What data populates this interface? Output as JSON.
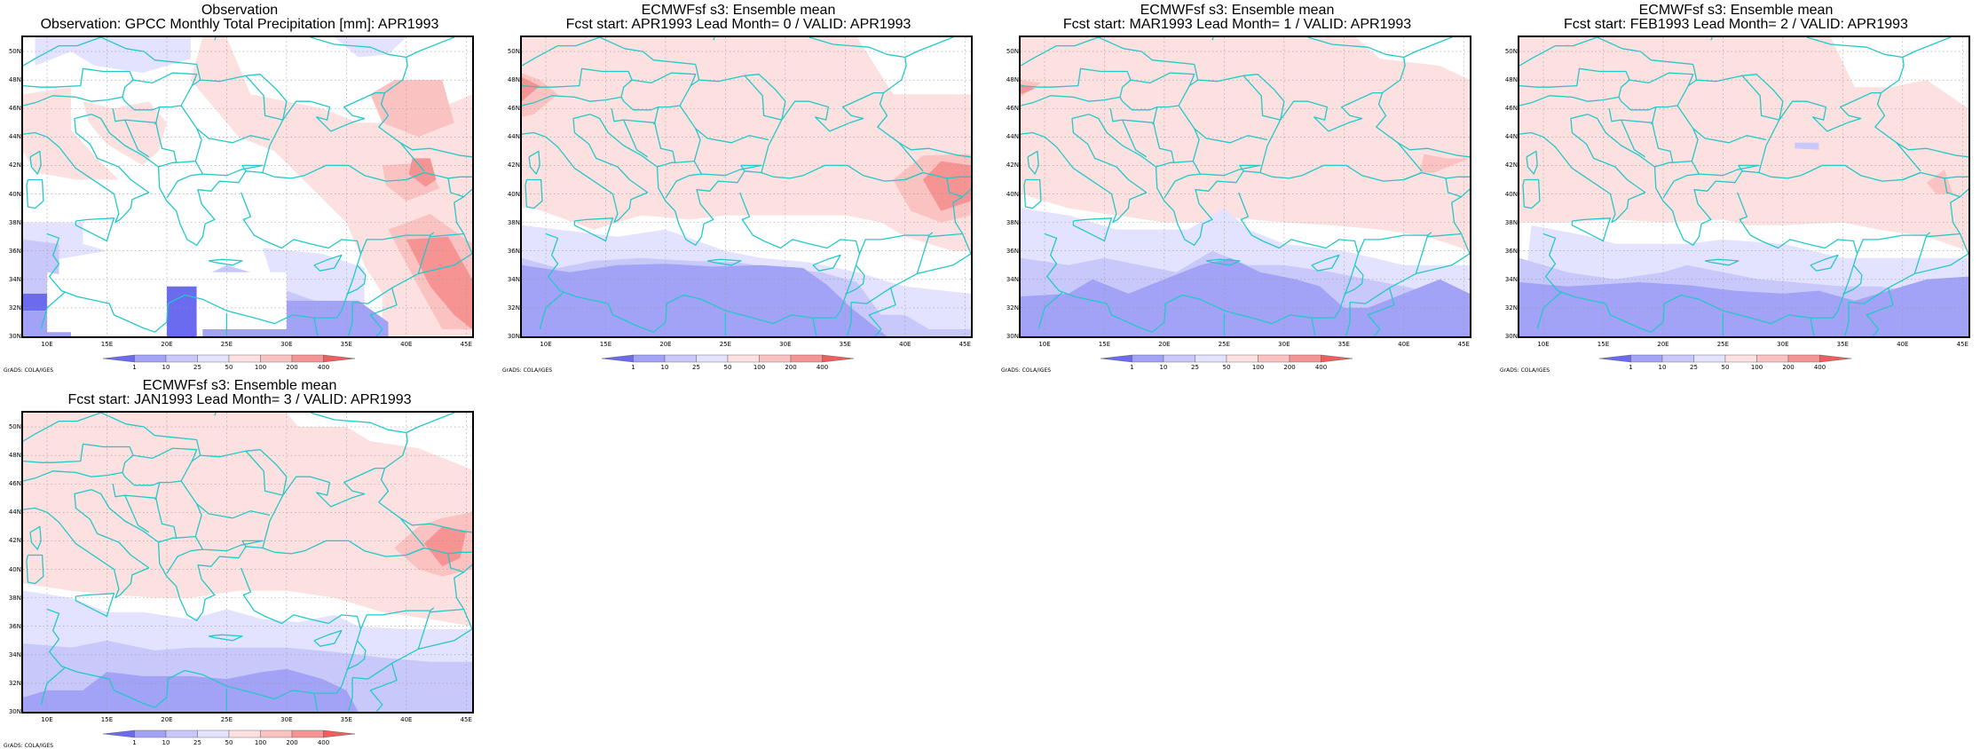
{
  "colors": {
    "coast": "#24c8c8",
    "grid": "#9a9a9a",
    "blue_1": "#e3e3ff",
    "blue_2": "#c8c8fa",
    "blue_3": "#a2a2f6",
    "blue_4": "#6b6bef",
    "red_1": "#fde0e0",
    "red_2": "#fbc2c2",
    "red_3": "#f69494",
    "red_4": "#ef5e5e"
  },
  "axes": {
    "lat_labels": [
      "50N",
      "48N",
      "46N",
      "44N",
      "42N",
      "40N",
      "38N",
      "36N",
      "34N",
      "32N",
      "30N"
    ],
    "lon_labels": [
      "10E",
      "15E",
      "20E",
      "25E",
      "30E",
      "35E",
      "40E",
      "45E"
    ],
    "lat_range": [
      30,
      51
    ],
    "lon_range": [
      8,
      45.5
    ]
  },
  "colorbar": {
    "levels": [
      "1",
      "10",
      "25",
      "50",
      "100",
      "200",
      "400"
    ]
  },
  "credit": "GrADS: COLA/IGES",
  "panels": [
    {
      "id": "observation",
      "title_line1": "Observation",
      "title_line2": "Observation: GPCC Monthly Total Precipitation [mm]: APR1993"
    },
    {
      "id": "lead0",
      "title_line1": "ECMWFsf s3: Ensemble mean",
      "title_line2": "Fcst start: APR1993  Lead Month= 0 / VALID: APR1993"
    },
    {
      "id": "lead1",
      "title_line1": "ECMWFsf s3: Ensemble mean",
      "title_line2": "Fcst start: MAR1993  Lead Month= 1 / VALID: APR1993"
    },
    {
      "id": "lead2",
      "title_line1": "ECMWFsf s3: Ensemble mean",
      "title_line2": "Fcst start: FEB1993  Lead Month= 2 / VALID: APR1993"
    },
    {
      "id": "lead3",
      "title_line1": "ECMWFsf s3: Ensemble mean",
      "title_line2": "Fcst start: JAN1993  Lead Month= 3 / VALID: APR1993"
    }
  ]
}
